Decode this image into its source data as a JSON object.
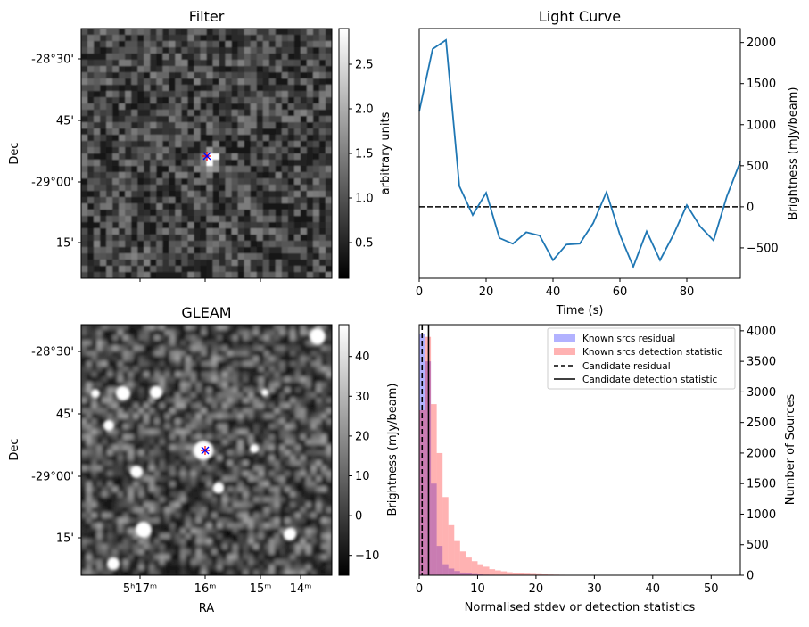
{
  "chart_data": [
    {
      "type": "heatmap",
      "title": "Filter",
      "ylabel": "Dec",
      "ytick_labels": [
        "-28°30'",
        "45'",
        "-29°00'",
        "15'"
      ],
      "colorbar": {
        "label": "arbitrary units",
        "range": [
          0.1,
          2.9
        ],
        "tick_values": [
          0.5,
          1.0,
          1.5,
          2.0,
          2.5
        ],
        "tick_labels": [
          "0.5",
          "1.0",
          "1.5",
          "2.0",
          "2.5"
        ]
      },
      "colormap": "gray",
      "markers": [
        "blue x",
        "red +"
      ]
    },
    {
      "type": "line",
      "title": "Light Curve",
      "xlabel": "Time (s)",
      "ylabel": "Brightness (mJy/beam)",
      "xlim": [
        0,
        96
      ],
      "ylim": [
        -870,
        2170
      ],
      "xtick_labels": [
        "0",
        "20",
        "40",
        "60",
        "80"
      ],
      "xtick_values": [
        0,
        20,
        40,
        60,
        80
      ],
      "ytick_labels": [
        "-500",
        "0",
        "500",
        "1000",
        "1500",
        "2000"
      ],
      "ytick_values": [
        -500,
        0,
        500,
        1000,
        1500,
        2000
      ],
      "hline": 0,
      "series": [
        {
          "x": [
            0,
            2,
            4,
            8,
            12,
            16,
            20,
            24,
            28,
            32,
            36,
            40,
            44,
            48,
            52,
            56,
            60,
            64,
            68,
            72,
            76,
            80,
            84,
            88,
            92,
            96
          ],
          "y": [
            1160,
            1540,
            1920,
            2030,
            250,
            -100,
            170,
            -380,
            -450,
            -310,
            -350,
            -650,
            -460,
            -450,
            -200,
            180,
            -340,
            -730,
            -300,
            -650,
            -340,
            20,
            -240,
            -410,
            130,
            550
          ],
          "color": "#1f77b4"
        }
      ]
    },
    {
      "type": "heatmap",
      "title": "GLEAM",
      "xlabel": "RA",
      "ylabel": "Dec",
      "ytick_labels": [
        "-28°30'",
        "45'",
        "-29°00'",
        "15'"
      ],
      "xtick_labels": [
        "5ʰ17ᵐ",
        "16ᵐ",
        "15ᵐ",
        "14ᵐ"
      ],
      "colorbar": {
        "label": "Brightness (mJy/beam)",
        "range": [
          -15,
          48
        ],
        "tick_values": [
          -10,
          0,
          10,
          20,
          30,
          40
        ],
        "tick_labels": [
          "−10",
          "0",
          "10",
          "20",
          "30",
          "40"
        ]
      },
      "colormap": "gray",
      "markers": [
        "blue x",
        "red +"
      ]
    },
    {
      "type": "bar",
      "xlabel": "Normalised stdev or detection statistics",
      "ylabel": "Number of Sources",
      "xlim": [
        0,
        55
      ],
      "ylim": [
        0,
        4100
      ],
      "xtick_labels": [
        "0",
        "10",
        "20",
        "30",
        "40",
        "50"
      ],
      "xtick_values": [
        0,
        10,
        20,
        30,
        40,
        50
      ],
      "ytick_labels": [
        "0",
        "500",
        "1000",
        "1500",
        "2000",
        "2500",
        "3000",
        "3500",
        "4000"
      ],
      "ytick_values": [
        0,
        500,
        1000,
        1500,
        2000,
        2500,
        3000,
        3500,
        4000
      ],
      "bin_start": 0,
      "bin_width": 1,
      "series": [
        {
          "name": "Known srcs residual",
          "color": "#0000ff",
          "alpha": 0.3,
          "values": [
            3950,
            3500,
            1500,
            480,
            180,
            110,
            70,
            45,
            30,
            20,
            14,
            10,
            8,
            6,
            5,
            4,
            3,
            2,
            2,
            2,
            1,
            1,
            1,
            1,
            1,
            1,
            0,
            0,
            0,
            0
          ]
        },
        {
          "name": "Known srcs detection statistic",
          "color": "#ff0000",
          "alpha": 0.3,
          "values": [
            2700,
            3900,
            2800,
            2000,
            1280,
            820,
            560,
            390,
            290,
            230,
            180,
            140,
            100,
            80,
            65,
            50,
            40,
            30,
            26,
            22,
            18,
            14,
            12,
            10,
            8,
            7,
            6,
            5,
            5,
            4,
            4,
            3,
            3,
            3,
            2,
            2,
            2,
            2,
            2,
            2,
            2,
            2,
            2,
            2,
            2,
            2,
            1,
            1,
            1,
            1,
            1,
            1,
            1,
            1,
            1
          ]
        }
      ],
      "vlines": [
        {
          "name": "Candidate residual",
          "x": 0.5,
          "style": "dashed"
        },
        {
          "name": "Candidate detection statistic",
          "x": 1.6,
          "style": "solid"
        }
      ],
      "legend": "top-right"
    }
  ]
}
